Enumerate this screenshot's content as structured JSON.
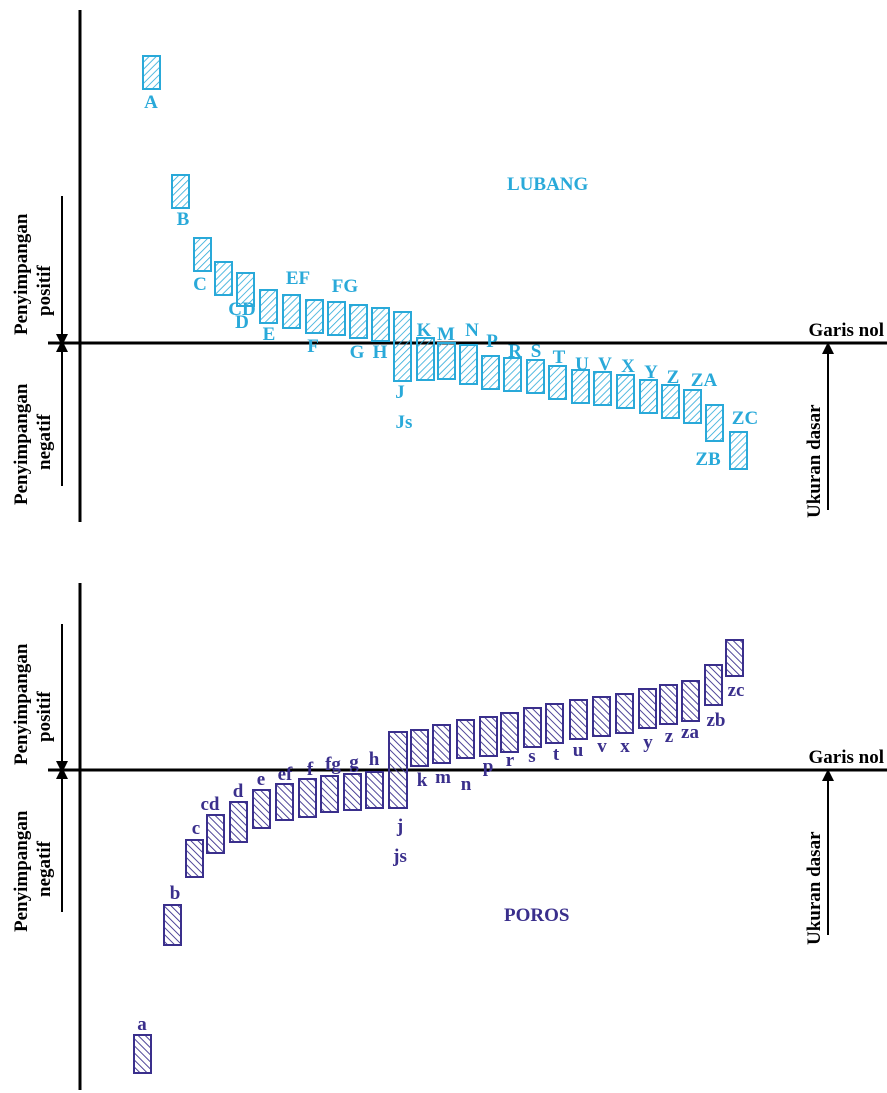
{
  "colors": {
    "hole": "#29a9d9",
    "shaft": "#3a2f8c",
    "axis": "#000000"
  },
  "hole_panel": {
    "title": "LUBANG",
    "zero_line_label": "Garis nol",
    "basic_size_label": "Ukuran dasar",
    "positive_label_1": "Penyimpangan",
    "positive_label_2": "positif",
    "negative_label_1": "Penyimpangan",
    "negative_label_2": "negatif",
    "labels": [
      "A",
      "B",
      "C",
      "CD",
      "D",
      "E",
      "EF",
      "F",
      "FG",
      "G",
      "H",
      "J",
      "Js",
      "K",
      "M",
      "N",
      "P",
      "R",
      "S",
      "T",
      "U",
      "V",
      "X",
      "Y",
      "Z",
      "ZA",
      "ZB",
      "ZC"
    ]
  },
  "shaft_panel": {
    "title": "POROS",
    "zero_line_label": "Garis nol",
    "basic_size_label": "Ukuran dasar",
    "positive_label_1": "Penyimpangan",
    "positive_label_2": "positif",
    "negative_label_1": "Penyimpangan",
    "negative_label_2": "negatif",
    "labels": [
      "a",
      "b",
      "c",
      "cd",
      "d",
      "e",
      "ef",
      "f",
      "fg",
      "g",
      "h",
      "j",
      "js",
      "k",
      "m",
      "n",
      "p",
      "r",
      "s",
      "t",
      "u",
      "v",
      "x",
      "y",
      "z",
      "za",
      "zb",
      "zc"
    ]
  }
}
